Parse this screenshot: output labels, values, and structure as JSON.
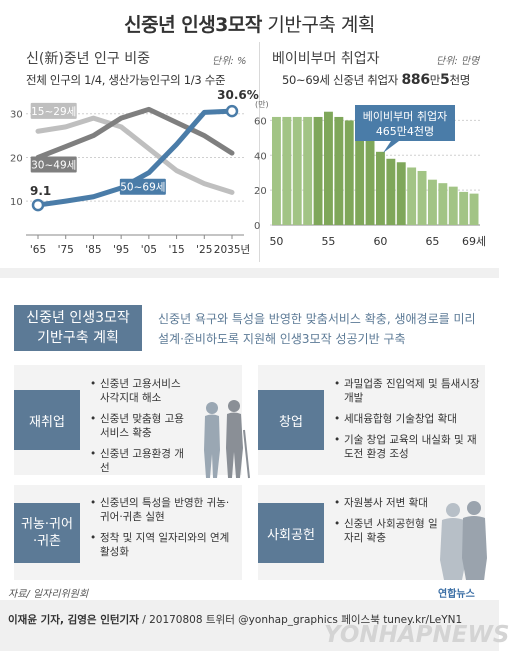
{
  "title": {
    "bold": "신중년 인생3모작",
    "rest": " 기반구축 계획"
  },
  "left_chart": {
    "heading": "신(新)중년 인구 비중",
    "unit": "단위: %",
    "subtitle": "전체 인구의 1/4, 생산가능인구의 1/3 수준"
  },
  "right_chart": {
    "heading": "베이비부머 취업자",
    "unit": "단위: 만명",
    "subtitle_pre": "50~69세 신중년 취업자 ",
    "subtitle_num": "886",
    "subtitle_mid": "만",
    "subtitle_num2": "5",
    "subtitle_post": "천명",
    "callout": [
      "베이비부머 취업자",
      "465만4천명"
    ],
    "man_label": "(만)"
  },
  "plan": {
    "box": [
      "신중년 인생3모작",
      "기반구축 계획"
    ],
    "desc": "신중년 욕구와 특성을 반영한 맞춤서비스 확충, 생애경로를 미리 설계·준비하도록 지원해 인생3모작 성공기반 구축"
  },
  "cards": [
    {
      "tag": "재취업",
      "items": [
        "신중년 고용서비스 사각지대 해소",
        "신중년 맞춤형 고용서비스 확충",
        "신중년 고용환경 개선"
      ]
    },
    {
      "tag": "창업",
      "items": [
        "과밀업종 진입억제 및 틈새시장 개발",
        "세대융합형 기술창업 확대",
        "기술 창업 교육의 내실화 및 재도전 환경 조성"
      ]
    },
    {
      "tag": "귀농·귀어·귀촌",
      "items": [
        "신중년의 특성을 반영한 귀농·귀어·귀촌 실현",
        "정착 및 지역 일자리와의 연계 활성화"
      ]
    },
    {
      "tag": "사회공헌",
      "items": [
        "자원봉사 저변 확대",
        "신중년 사회공헌형 일자리 확충"
      ]
    }
  ],
  "footer": {
    "source": "자료/ 일자리위원회",
    "credit_bold": "이재윤 기자, 김영은 인턴기자",
    "credit_rest": " / 20170808  트위터 @yonhap_graphics  페이스북 tuney.kr/LeYN1",
    "logo": "연합뉴스",
    "watermark": "YONHAPNEWS"
  },
  "colors": {
    "accent": "#4a7ca8",
    "dark_gray": "#7f7f7f",
    "light_gray": "#bfbfbf",
    "bar_green": "#8fb66e",
    "tag_blue": "#5c7a96"
  },
  "chart_data": [
    {
      "type": "line",
      "title": "신(新)중년 인구 비중",
      "unit": "%",
      "categories": [
        "'65",
        "'75",
        "'85",
        "'95",
        "'05",
        "'15",
        "'25",
        "2035년"
      ],
      "ylim": [
        5,
        32
      ],
      "yticks": [
        10,
        20,
        30
      ],
      "series": [
        {
          "name": "15~29세",
          "color": "#bfbfbf",
          "values": [
            26,
            27,
            29,
            27,
            22,
            17,
            14,
            12
          ]
        },
        {
          "name": "30~49세",
          "color": "#7f7f7f",
          "values": [
            20,
            22.5,
            25,
            29,
            31,
            28,
            25,
            21
          ]
        },
        {
          "name": "50~69세",
          "color": "#4a7ca8",
          "values": [
            9.1,
            10,
            11,
            13,
            16.5,
            23,
            30.3,
            30.6
          ]
        }
      ],
      "annotations": [
        "9.1",
        "30.6%"
      ]
    },
    {
      "type": "bar",
      "title": "베이비부머 취업자",
      "unit": "만명",
      "categories": [
        "50",
        "51",
        "52",
        "53",
        "54",
        "55",
        "56",
        "57",
        "58",
        "59",
        "60",
        "61",
        "62",
        "63",
        "64",
        "65",
        "66",
        "67",
        "68",
        "69"
      ],
      "values": [
        62,
        62,
        62,
        62,
        62,
        65,
        62,
        60,
        58,
        50,
        42,
        38,
        36,
        33,
        31,
        26,
        24,
        22,
        19,
        18
      ],
      "ylim": [
        0,
        70
      ],
      "yticks": [
        0,
        20,
        40,
        60
      ],
      "xticks": [
        "50",
        "55",
        "60",
        "65",
        "69세"
      ],
      "highlight_range": [
        "54",
        "62"
      ]
    }
  ]
}
